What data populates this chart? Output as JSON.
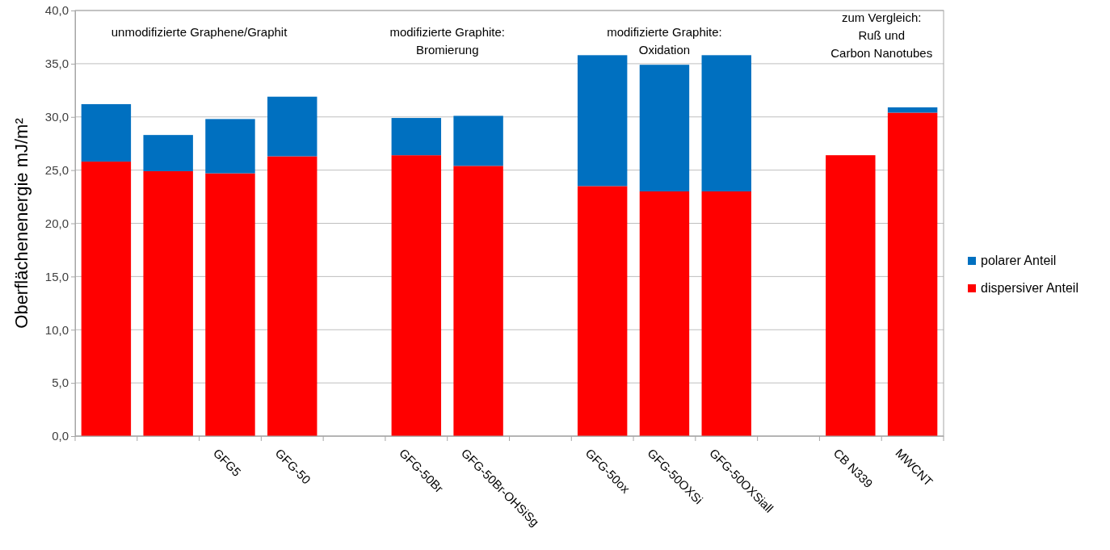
{
  "chart_data": {
    "type": "bar",
    "stacked": true,
    "ylabel": "Oberflächenenergie  mJ/m²",
    "categories": [
      null,
      null,
      "GFG5",
      "GFG-50",
      null,
      "GFG-50Br",
      "GFG-50Br-OHSiSg",
      null,
      "GFG-50ox",
      "GFG-50OXSi",
      "GFG-50OXSiall",
      null,
      "CB N339",
      "MWCNT"
    ],
    "series": [
      {
        "name": "dispersiver Anteil",
        "color": "#ff0000",
        "values": [
          25.8,
          24.9,
          24.7,
          26.3,
          null,
          26.4,
          25.4,
          null,
          23.5,
          23.0,
          23.0,
          null,
          26.4,
          30.4
        ]
      },
      {
        "name": "polarer Anteil",
        "color": "#0070c0",
        "values": [
          5.4,
          3.4,
          5.1,
          5.6,
          null,
          3.5,
          4.7,
          null,
          12.3,
          11.9,
          12.8,
          null,
          0,
          0.5
        ]
      }
    ],
    "ylim": [
      0,
      40
    ],
    "yticks": [
      {
        "value": 0,
        "label": "0,0"
      },
      {
        "value": 5,
        "label": "5,0"
      },
      {
        "value": 10,
        "label": "10,0"
      },
      {
        "value": 15,
        "label": "15,0"
      },
      {
        "value": 20,
        "label": "20,0"
      },
      {
        "value": 25,
        "label": "25,0"
      },
      {
        "value": 30,
        "label": "30,0"
      },
      {
        "value": 35,
        "label": "35,0"
      },
      {
        "value": 40,
        "label": "40,0"
      }
    ],
    "grid": "y",
    "legend": "right",
    "annotations": [
      "unmodifizierte Graphene/Graphit",
      "modifizierte Graphite:\nBromierung",
      "modifizierte Graphite:\nOxidation",
      "zum Vergleich:\nRuß und\nCarbon Nanotubes"
    ]
  }
}
